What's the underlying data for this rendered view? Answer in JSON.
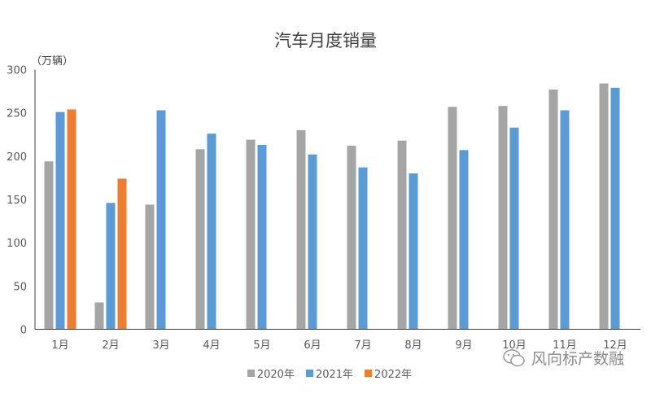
{
  "chart_data": {
    "type": "bar",
    "title": "汽车月度销量",
    "ylabel": "（万辆）",
    "categories": [
      "1月",
      "2月",
      "3月",
      "4月",
      "5月",
      "6月",
      "7月",
      "8月",
      "9月",
      "10月",
      "11月",
      "12月"
    ],
    "series": [
      {
        "name": "2020年",
        "color": "#a5a5a5",
        "values": [
          194,
          31,
          144,
          208,
          219,
          230,
          212,
          218,
          257,
          258,
          277,
          284
        ]
      },
      {
        "name": "2021年",
        "color": "#5b9bd5",
        "values": [
          251,
          146,
          253,
          226,
          213,
          202,
          187,
          180,
          207,
          233,
          253,
          279
        ]
      },
      {
        "name": "2022年",
        "color": "#ed7d31",
        "values": [
          254,
          174,
          null,
          null,
          null,
          null,
          null,
          null,
          null,
          null,
          null,
          null
        ]
      }
    ],
    "ylim": [
      0,
      300
    ],
    "yticks": [
      0,
      50,
      100,
      150,
      200,
      250,
      300
    ],
    "grid": false,
    "legend_position": "bottom"
  },
  "watermark": {
    "text": "风向标产数融",
    "icon": "wechat-icon"
  }
}
